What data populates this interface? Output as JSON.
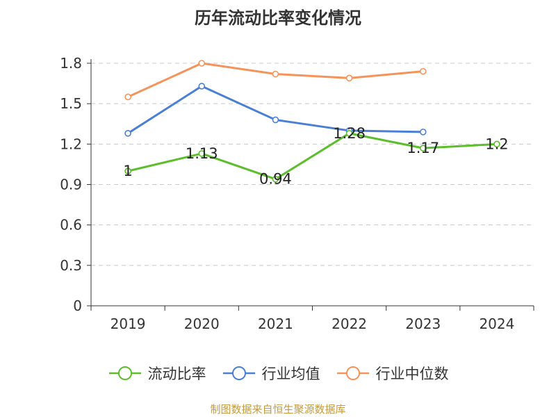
{
  "chart_data": {
    "type": "line",
    "title": "历年流动比率变化情况",
    "categories": [
      "2019",
      "2020",
      "2021",
      "2022",
      "2023",
      "2024"
    ],
    "ylim": [
      0,
      1.8
    ],
    "yticks": [
      "0",
      "0.3",
      "0.6",
      "0.9",
      "1.2",
      "1.5",
      "1.8"
    ],
    "grid": true,
    "legend_position": "bottom",
    "series": [
      {
        "name": "流动比率",
        "color": "#5cbd2d",
        "values": [
          1,
          1.13,
          0.94,
          1.28,
          1.17,
          1.2
        ],
        "labels": [
          "1",
          "1.13",
          "0.94",
          "1.28",
          "1.17",
          "1.2"
        ]
      },
      {
        "name": "行业均值",
        "color": "#4a7fd8",
        "values": [
          1.28,
          1.63,
          1.38,
          1.3,
          1.29,
          null
        ]
      },
      {
        "name": "行业中位数",
        "color": "#f5935a",
        "values": [
          1.55,
          1.8,
          1.72,
          1.69,
          1.74,
          null
        ]
      }
    ]
  },
  "footer": {
    "source": "制图数据来自恒生聚源数据库"
  }
}
